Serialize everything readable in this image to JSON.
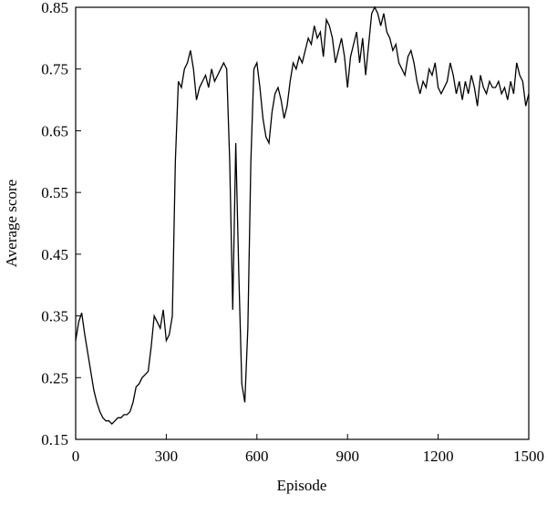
{
  "chart_data": {
    "type": "line",
    "xlabel": "Episode",
    "ylabel": "Average score",
    "x": [
      0,
      10,
      20,
      30,
      40,
      50,
      60,
      70,
      80,
      90,
      100,
      110,
      120,
      130,
      140,
      150,
      160,
      170,
      180,
      190,
      200,
      210,
      220,
      230,
      240,
      250,
      260,
      270,
      280,
      290,
      300,
      310,
      320,
      330,
      340,
      350,
      360,
      370,
      380,
      390,
      400,
      410,
      420,
      430,
      440,
      450,
      460,
      470,
      480,
      490,
      500,
      510,
      520,
      530,
      540,
      550,
      560,
      570,
      580,
      590,
      600,
      610,
      620,
      630,
      640,
      650,
      660,
      670,
      680,
      690,
      700,
      710,
      720,
      730,
      740,
      750,
      760,
      770,
      780,
      790,
      800,
      810,
      820,
      830,
      840,
      850,
      860,
      870,
      880,
      890,
      900,
      910,
      920,
      930,
      940,
      950,
      960,
      970,
      980,
      990,
      1000,
      1010,
      1020,
      1030,
      1040,
      1050,
      1060,
      1070,
      1080,
      1090,
      1100,
      1110,
      1120,
      1130,
      1140,
      1150,
      1160,
      1170,
      1180,
      1190,
      1200,
      1210,
      1220,
      1230,
      1240,
      1250,
      1260,
      1270,
      1280,
      1290,
      1300,
      1310,
      1320,
      1330,
      1340,
      1350,
      1360,
      1370,
      1380,
      1390,
      1400,
      1410,
      1420,
      1430,
      1440,
      1450,
      1460,
      1470,
      1480,
      1490,
      1500
    ],
    "series": [
      {
        "color": "#000000",
        "values": [
          0.31,
          0.34,
          0.355,
          0.32,
          0.29,
          0.26,
          0.23,
          0.21,
          0.195,
          0.185,
          0.18,
          0.18,
          0.175,
          0.18,
          0.185,
          0.185,
          0.19,
          0.19,
          0.195,
          0.21,
          0.235,
          0.24,
          0.25,
          0.255,
          0.26,
          0.3,
          0.35,
          0.34,
          0.33,
          0.36,
          0.31,
          0.32,
          0.35,
          0.6,
          0.73,
          0.72,
          0.75,
          0.76,
          0.78,
          0.75,
          0.7,
          0.72,
          0.73,
          0.74,
          0.72,
          0.75,
          0.73,
          0.74,
          0.75,
          0.76,
          0.75,
          0.6,
          0.36,
          0.63,
          0.42,
          0.24,
          0.21,
          0.33,
          0.6,
          0.75,
          0.76,
          0.72,
          0.67,
          0.64,
          0.63,
          0.68,
          0.71,
          0.72,
          0.7,
          0.67,
          0.69,
          0.73,
          0.76,
          0.75,
          0.77,
          0.76,
          0.78,
          0.8,
          0.79,
          0.82,
          0.8,
          0.81,
          0.77,
          0.83,
          0.82,
          0.8,
          0.76,
          0.78,
          0.8,
          0.77,
          0.72,
          0.77,
          0.79,
          0.81,
          0.76,
          0.8,
          0.74,
          0.79,
          0.84,
          0.85,
          0.84,
          0.82,
          0.84,
          0.81,
          0.8,
          0.78,
          0.79,
          0.76,
          0.75,
          0.74,
          0.77,
          0.78,
          0.76,
          0.73,
          0.71,
          0.73,
          0.72,
          0.75,
          0.74,
          0.76,
          0.72,
          0.71,
          0.72,
          0.73,
          0.76,
          0.74,
          0.71,
          0.73,
          0.7,
          0.73,
          0.71,
          0.74,
          0.72,
          0.69,
          0.74,
          0.72,
          0.71,
          0.73,
          0.72,
          0.72,
          0.73,
          0.71,
          0.72,
          0.7,
          0.73,
          0.71,
          0.76,
          0.74,
          0.73,
          0.69,
          0.71
        ]
      }
    ],
    "xlim": [
      0,
      1500
    ],
    "xticks": [
      0,
      300,
      600,
      900,
      1200,
      1500
    ],
    "ylim": [
      0.15,
      0.85
    ],
    "yticks": [
      0.15,
      0.25,
      0.35,
      0.45,
      0.55,
      0.65,
      0.75,
      0.85
    ]
  }
}
